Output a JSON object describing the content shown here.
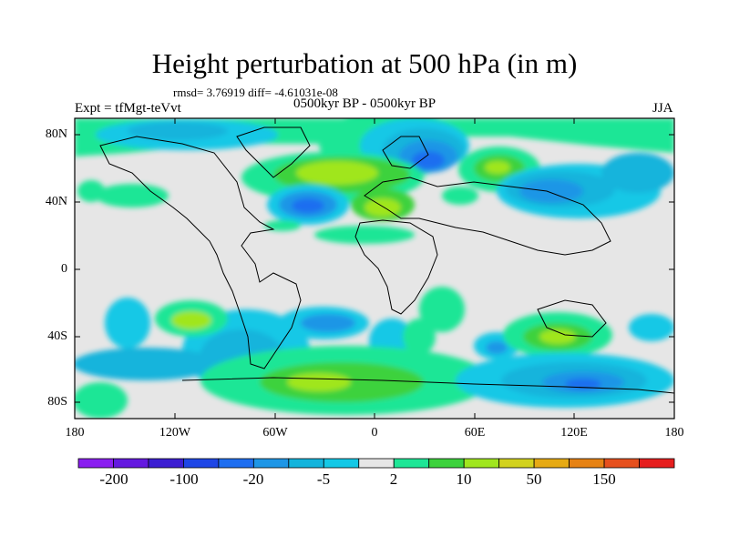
{
  "title": "Height perturbation at 500 hPa (in m)",
  "stats": "rmsd= 3.76919 diff= -4.61031e-08",
  "experiment": "Expt = tfMgt-teVvt",
  "period": "0500kyr BP - 0500kyr BP",
  "season": "JJA",
  "lat_labels": [
    "80N",
    "40N",
    "0",
    "40S",
    "80S"
  ],
  "lon_labels": [
    "180",
    "120W",
    "60W",
    "0",
    "60E",
    "120E",
    "180"
  ],
  "colorbar": {
    "colors": [
      "#8a1ef0",
      "#6419e0",
      "#3c1ed2",
      "#1e46e6",
      "#1e6ef0",
      "#1e96e6",
      "#14b4dc",
      "#14c8e6",
      "#e6e6e6",
      "#1ee696",
      "#3cd23c",
      "#a0e61e",
      "#d2d21e",
      "#e6aa14",
      "#e68214",
      "#e6501e",
      "#e61e1e"
    ],
    "labels": [
      "-200",
      "-100",
      "-20",
      "-5",
      "2",
      "10",
      "50",
      "150"
    ]
  }
}
